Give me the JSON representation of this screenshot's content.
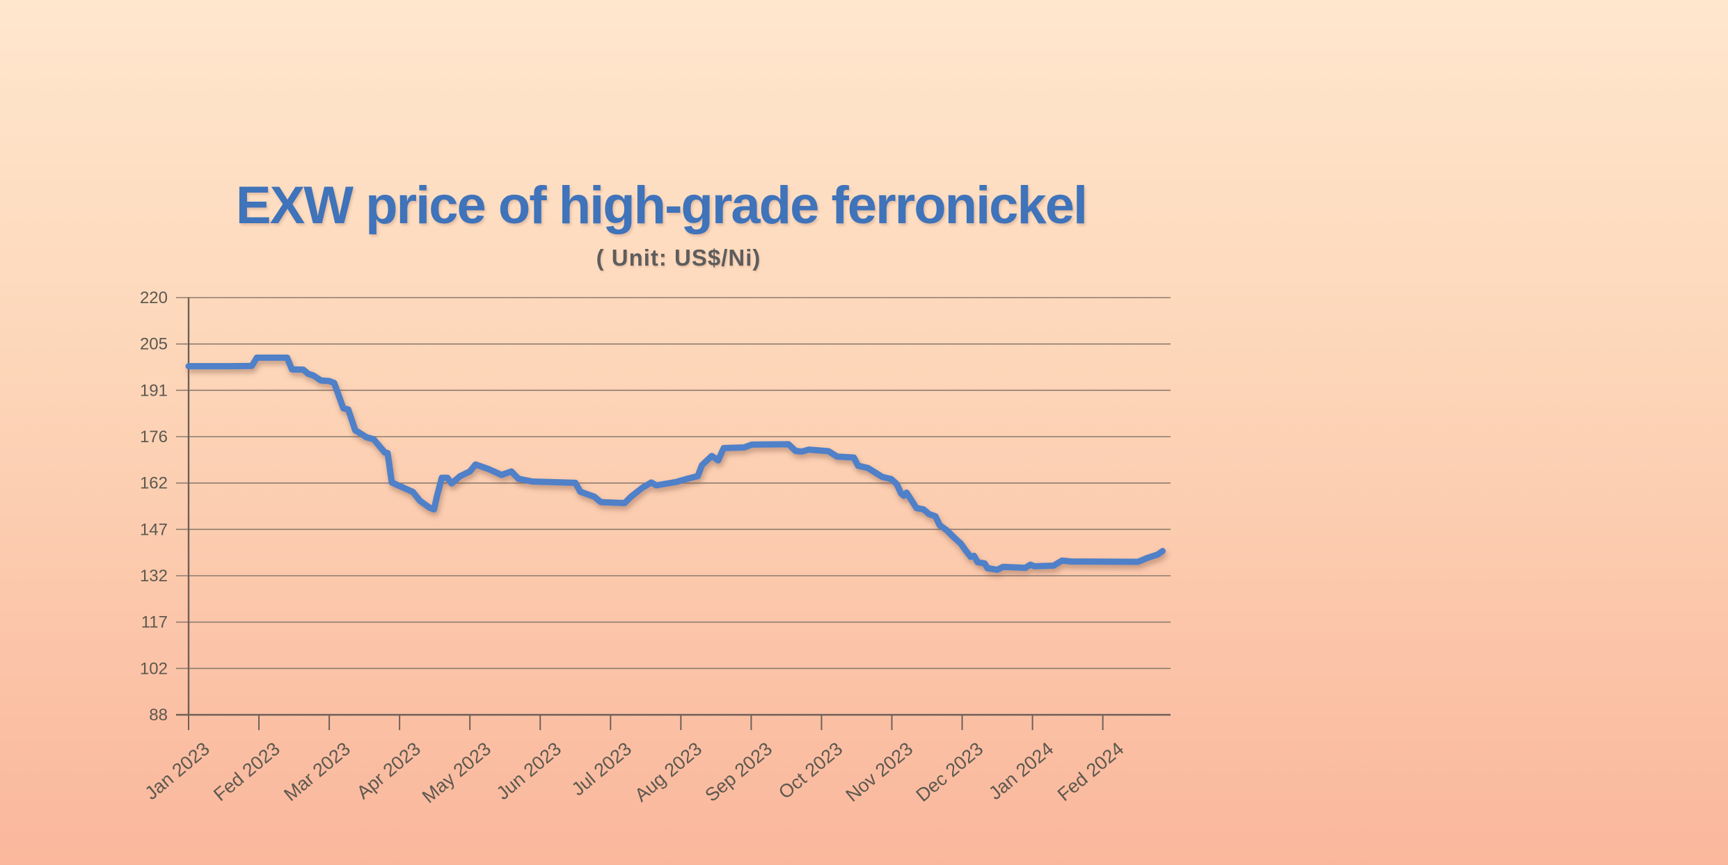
{
  "colors": {
    "background_top": "#ffe7cd",
    "background_mid": "#fdd6b9",
    "background_bottom": "#fab79c",
    "title_text": "#3f73ba",
    "subtitle_text": "#5d5d5d",
    "axis_label_text": "#5d584f",
    "grid_line": "#8d7a6e",
    "axis_line": "#6e6058",
    "series_line": "#4f80c8"
  },
  "chart_data": {
    "type": "line",
    "title": "EXW price of high-grade ferronickel",
    "subtitle": "( Unit: US$/Ni)",
    "unit": "US$/Ni",
    "xlabel": "",
    "ylabel": "",
    "grid": true,
    "legend_position": "none",
    "ylim": [
      88,
      220
    ],
    "y_ticks": [
      220,
      205,
      191,
      176,
      162,
      147,
      132,
      117,
      102,
      88
    ],
    "x_tick_labels": [
      "Jan 2023",
      "Fed 2023",
      "Mar 2023",
      "Apr 2023",
      "May 2023",
      "Jun 2023",
      "Jul 2023",
      "Aug 2023",
      "Sep 2023",
      "Oct 2023",
      "Nov 2023",
      "Dec 2023",
      "Jan 2024",
      "Fed 2024"
    ],
    "x_axis_span_months": 13.97,
    "series": [
      {
        "name": "EXW price of high-grade ferronickel",
        "color": "#4f80c8",
        "x_unit": "months after Jan 2023 tick",
        "points": [
          [
            0.0,
            198.3
          ],
          [
            0.6,
            198.3
          ],
          [
            0.9,
            198.4
          ],
          [
            0.97,
            201.0
          ],
          [
            1.4,
            201.0
          ],
          [
            1.47,
            197.3
          ],
          [
            1.63,
            197.2
          ],
          [
            1.7,
            195.9
          ],
          [
            1.78,
            195.3
          ],
          [
            1.88,
            193.8
          ],
          [
            2.0,
            193.6
          ],
          [
            2.07,
            193.0
          ],
          [
            2.2,
            185.0
          ],
          [
            2.27,
            184.6
          ],
          [
            2.37,
            178.0
          ],
          [
            2.43,
            177.2
          ],
          [
            2.53,
            175.8
          ],
          [
            2.63,
            175.2
          ],
          [
            2.79,
            171.0
          ],
          [
            2.83,
            170.8
          ],
          [
            2.89,
            161.5
          ],
          [
            3.19,
            158.5
          ],
          [
            3.29,
            155.7
          ],
          [
            3.43,
            153.5
          ],
          [
            3.49,
            153.0
          ],
          [
            3.53,
            157.0
          ],
          [
            3.6,
            163.0
          ],
          [
            3.68,
            163.0
          ],
          [
            3.74,
            161.2
          ],
          [
            3.86,
            163.5
          ],
          [
            4.0,
            165.0
          ],
          [
            4.08,
            167.2
          ],
          [
            4.26,
            165.8
          ],
          [
            4.45,
            163.9
          ],
          [
            4.59,
            165.0
          ],
          [
            4.69,
            162.7
          ],
          [
            4.89,
            161.8
          ],
          [
            5.5,
            161.4
          ],
          [
            5.57,
            158.6
          ],
          [
            5.77,
            157.0
          ],
          [
            5.86,
            155.3
          ],
          [
            6.2,
            155.0
          ],
          [
            6.29,
            157.0
          ],
          [
            6.45,
            159.8
          ],
          [
            6.58,
            161.5
          ],
          [
            6.65,
            160.6
          ],
          [
            6.94,
            161.7
          ],
          [
            7.06,
            162.5
          ],
          [
            7.24,
            163.5
          ],
          [
            7.3,
            167.0
          ],
          [
            7.44,
            169.9
          ],
          [
            7.53,
            168.5
          ],
          [
            7.61,
            172.4
          ],
          [
            7.9,
            172.6
          ],
          [
            8.01,
            173.5
          ],
          [
            8.53,
            173.6
          ],
          [
            8.63,
            171.5
          ],
          [
            8.72,
            171.3
          ],
          [
            8.82,
            171.9
          ],
          [
            9.1,
            171.4
          ],
          [
            9.22,
            169.7
          ],
          [
            9.46,
            169.4
          ],
          [
            9.52,
            166.8
          ],
          [
            9.66,
            166.1
          ],
          [
            9.86,
            163.3
          ],
          [
            9.99,
            162.6
          ],
          [
            10.07,
            161.0
          ],
          [
            10.13,
            158.1
          ],
          [
            10.17,
            157.3
          ],
          [
            10.21,
            158.3
          ],
          [
            10.28,
            155.9
          ],
          [
            10.35,
            153.4
          ],
          [
            10.45,
            153.0
          ],
          [
            10.53,
            151.5
          ],
          [
            10.62,
            150.8
          ],
          [
            10.68,
            148.0
          ],
          [
            10.78,
            146.4
          ],
          [
            10.88,
            144.2
          ],
          [
            10.98,
            142.2
          ],
          [
            11.05,
            140.0
          ],
          [
            11.12,
            138.0
          ],
          [
            11.17,
            138.3
          ],
          [
            11.22,
            136.3
          ],
          [
            11.32,
            135.9
          ],
          [
            11.36,
            134.4
          ],
          [
            11.5,
            133.9
          ],
          [
            11.58,
            134.8
          ],
          [
            11.9,
            134.5
          ],
          [
            11.97,
            135.5
          ],
          [
            12.03,
            135.0
          ],
          [
            12.3,
            135.2
          ],
          [
            12.42,
            136.8
          ],
          [
            12.55,
            136.5
          ],
          [
            13.5,
            136.4
          ],
          [
            13.63,
            137.6
          ],
          [
            13.78,
            138.7
          ],
          [
            13.85,
            139.8
          ]
        ]
      }
    ]
  }
}
